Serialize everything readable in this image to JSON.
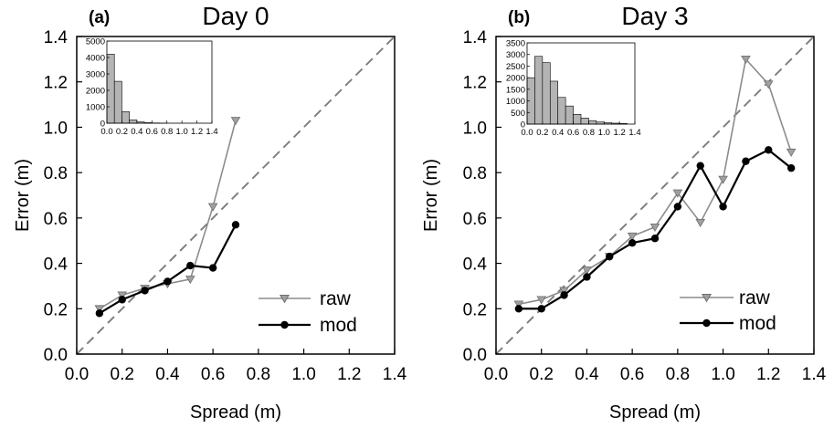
{
  "chart_data": [
    {
      "type": "line",
      "panel_label": "(a)",
      "title": "Day 0",
      "xlabel": "Spread (m)",
      "ylabel": "Error (m)",
      "xlim": [
        0,
        1.4
      ],
      "ylim": [
        0,
        1.4
      ],
      "x_ticks": [
        "0.0",
        "0.2",
        "0.4",
        "0.6",
        "0.8",
        "1.0",
        "1.2",
        "1.4"
      ],
      "y_ticks": [
        "0.0",
        "0.2",
        "0.4",
        "0.6",
        "0.8",
        "1.0",
        "1.2",
        "1.4"
      ],
      "diagonal": "dashed 1:1 line",
      "legend_position": "lower-right",
      "series": [
        {
          "name": "raw",
          "color": "#8c8c8c",
          "marker": "triangle-down",
          "x": [
            0.1,
            0.2,
            0.3,
            0.4,
            0.5,
            0.6,
            0.7
          ],
          "y": [
            0.2,
            0.26,
            0.29,
            0.31,
            0.33,
            0.65,
            1.03
          ]
        },
        {
          "name": "mod",
          "color": "#000000",
          "marker": "circle",
          "x": [
            0.1,
            0.2,
            0.3,
            0.4,
            0.5,
            0.6,
            0.7
          ],
          "y": [
            0.18,
            0.24,
            0.28,
            0.32,
            0.39,
            0.38,
            0.57
          ]
        }
      ],
      "inset_histogram": {
        "ylim": [
          0,
          5000
        ],
        "y_ticks": [
          "5000",
          "4000",
          "3000",
          "2000",
          "1000",
          "0"
        ],
        "y_tick_values": [
          5000,
          4000,
          3000,
          2000,
          1000,
          0
        ],
        "x_tick_labels": [
          "0.0",
          "0.2",
          "0.4",
          "0.6",
          "0.8",
          "1.0",
          "1.2",
          "1.4"
        ],
        "bin_edges": [
          0,
          0.1,
          0.2,
          0.3,
          0.4,
          0.5,
          0.6,
          0.7,
          0.8
        ],
        "counts": [
          4200,
          2550,
          700,
          200,
          80,
          30,
          15,
          5
        ],
        "color": "#b4b4b4"
      }
    },
    {
      "type": "line",
      "panel_label": "(b)",
      "title": "Day 3",
      "xlabel": "Spread (m)",
      "ylabel": "Error (m)",
      "xlim": [
        0,
        1.4
      ],
      "ylim": [
        0,
        1.4
      ],
      "x_ticks": [
        "0.0",
        "0.2",
        "0.4",
        "0.6",
        "0.8",
        "1.0",
        "1.2",
        "1.4"
      ],
      "y_ticks": [
        "0.0",
        "0.2",
        "0.4",
        "0.6",
        "0.8",
        "1.0",
        "1.2",
        "1.4"
      ],
      "diagonal": "dashed 1:1 line",
      "legend_position": "lower-right",
      "series": [
        {
          "name": "raw",
          "color": "#8c8c8c",
          "marker": "triangle-down",
          "x": [
            0.1,
            0.2,
            0.3,
            0.4,
            0.5,
            0.6,
            0.7,
            0.8,
            0.9,
            1.0,
            1.1,
            1.2,
            1.3
          ],
          "y": [
            0.22,
            0.24,
            0.28,
            0.37,
            0.43,
            0.52,
            0.56,
            0.71,
            0.58,
            0.77,
            1.3,
            1.19,
            0.89
          ]
        },
        {
          "name": "mod",
          "color": "#000000",
          "marker": "circle",
          "x": [
            0.1,
            0.2,
            0.3,
            0.4,
            0.5,
            0.6,
            0.7,
            0.8,
            0.9,
            1.0,
            1.1,
            1.2,
            1.3
          ],
          "y": [
            0.2,
            0.2,
            0.26,
            0.34,
            0.43,
            0.49,
            0.51,
            0.65,
            0.83,
            0.65,
            0.85,
            0.9,
            0.82
          ]
        }
      ],
      "inset_histogram": {
        "ylim": [
          0,
          3500
        ],
        "y_ticks": [
          "3500",
          "3000",
          "2500",
          "2000",
          "1500",
          "1000",
          "500",
          "0"
        ],
        "y_tick_values": [
          3500,
          3000,
          2500,
          2000,
          1500,
          1000,
          500,
          0
        ],
        "x_tick_labels": [
          "0.0",
          "0.2",
          "0.4",
          "0.6",
          "0.8",
          "1.0",
          "1.2",
          "1.4"
        ],
        "bin_edges": [
          0,
          0.1,
          0.2,
          0.3,
          0.4,
          0.5,
          0.6,
          0.7,
          0.8,
          0.9,
          1.0,
          1.1,
          1.2,
          1.3
        ],
        "counts": [
          2000,
          2920,
          2650,
          1850,
          1150,
          780,
          420,
          260,
          150,
          90,
          60,
          40,
          25
        ],
        "color": "#b4b4b4"
      }
    }
  ]
}
